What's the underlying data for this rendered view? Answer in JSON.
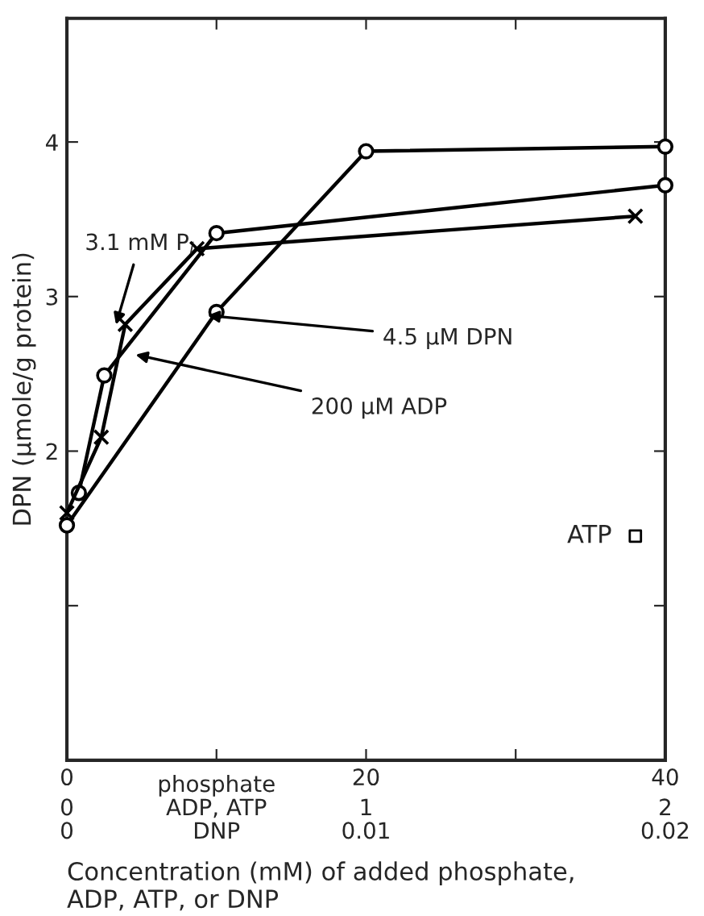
{
  "chart_data": {
    "type": "line",
    "xlabel": "Concentration (mM) of added phosphate,\nADP, ATP, or DNP",
    "ylabel": "DPN (μmole/g protein)",
    "xlim": [
      0,
      40
    ],
    "ylim": [
      0,
      4.8
    ],
    "xticks": [
      0,
      {
        "value": 10,
        "label": null
      },
      20,
      {
        "value": 30,
        "label": null
      },
      40
    ],
    "yticks": [
      {
        "value": 0,
        "label": null
      },
      {
        "value": 1,
        "label": null
      },
      2,
      3,
      4
    ],
    "grid": false,
    "legend": false,
    "line_style": "solid",
    "series": [
      {
        "color": "#000000",
        "marker": "circle",
        "x": [
          0.8,
          2.5,
          10,
          40
        ],
        "values": [
          1.73,
          2.49,
          3.41,
          3.72
        ]
      },
      {
        "color": "#000000",
        "marker": "cross",
        "x": [
          0,
          2.3,
          3.9,
          8.7,
          38
        ],
        "values": [
          1.6,
          2.09,
          2.82,
          3.31,
          3.52
        ]
      },
      {
        "color": "#000000",
        "marker": "circle",
        "x": [
          0,
          10,
          20,
          40
        ],
        "values": [
          1.52,
          2.9,
          3.94,
          3.97
        ]
      },
      {
        "type": "scatter",
        "name": "ATP",
        "color": "#000000",
        "marker": "square",
        "x": [
          38
        ],
        "values": [
          1.45
        ]
      }
    ],
    "annotations": [
      "phosphate",
      "ADP, ATP",
      "DNP",
      "0",
      "1",
      "2",
      "0",
      "0.01",
      "0.02",
      {
        "text": "3.1 mM P$_{i}$",
        "x": 3.2,
        "y": 2.79
      },
      {
        "text": "4.5 μM DPN",
        "x": 9.1,
        "y": 2.88
      },
      {
        "text": "200 μM ADP",
        "x": 4.3,
        "y": 2.63
      }
    ]
  }
}
